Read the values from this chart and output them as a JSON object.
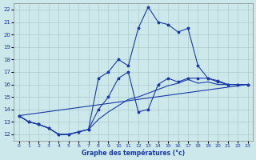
{
  "background_color": "#cce8ea",
  "grid_color": "#aacccc",
  "line_color": "#1a3aaa",
  "xlabel": "Graphe des températures (°c)",
  "ylim": [
    11.5,
    22.5
  ],
  "xlim": [
    -0.5,
    23.5
  ],
  "yticks": [
    12,
    13,
    14,
    15,
    16,
    17,
    18,
    19,
    20,
    21,
    22
  ],
  "xticks": [
    0,
    1,
    2,
    3,
    4,
    5,
    6,
    7,
    8,
    9,
    10,
    11,
    12,
    13,
    14,
    15,
    16,
    17,
    18,
    19,
    20,
    21,
    22,
    23
  ],
  "lines": [
    {
      "x": [
        0,
        1,
        2,
        3,
        4,
        5,
        6,
        7,
        8,
        9,
        10,
        11,
        12,
        13,
        14,
        15,
        16,
        17,
        18,
        19,
        20,
        21,
        22,
        23
      ],
      "y": [
        13.5,
        13.0,
        12.8,
        12.5,
        12.0,
        12.0,
        12.2,
        12.4,
        16.5,
        17.0,
        18.0,
        17.5,
        20.5,
        22.2,
        21.0,
        20.8,
        20.2,
        20.5,
        17.5,
        16.5,
        16.2,
        16.0,
        16.0,
        16.0
      ],
      "markers": true
    },
    {
      "x": [
        0,
        1,
        2,
        3,
        4,
        5,
        6,
        7,
        8,
        9,
        10,
        11,
        12,
        13,
        14,
        15,
        16,
        17,
        18,
        19,
        20,
        21,
        22,
        23
      ],
      "y": [
        13.5,
        13.0,
        12.8,
        12.5,
        12.0,
        12.0,
        12.2,
        12.4,
        14.0,
        15.0,
        16.5,
        17.0,
        13.8,
        14.0,
        16.0,
        16.5,
        16.2,
        16.5,
        16.5,
        16.5,
        16.3,
        16.0,
        16.0,
        16.0
      ],
      "markers": true
    },
    {
      "x": [
        0,
        23
      ],
      "y": [
        13.5,
        16.0
      ],
      "markers": false
    },
    {
      "x": [
        0,
        1,
        2,
        3,
        4,
        5,
        6,
        7,
        8,
        9,
        10,
        11,
        12,
        13,
        14,
        15,
        16,
        17,
        18,
        19,
        20,
        21,
        22,
        23
      ],
      "y": [
        13.5,
        13.0,
        12.8,
        12.5,
        12.0,
        12.0,
        12.2,
        12.4,
        13.2,
        13.8,
        14.3,
        14.8,
        15.0,
        15.3,
        15.6,
        15.9,
        16.1,
        16.4,
        16.1,
        16.2,
        16.0,
        16.0,
        16.0,
        16.0
      ],
      "markers": false
    }
  ]
}
